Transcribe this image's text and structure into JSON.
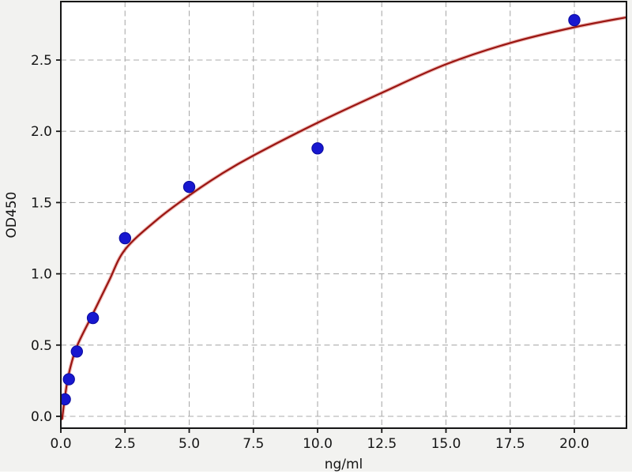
{
  "chart_data": {
    "type": "scatter",
    "title": "",
    "xlabel": "ng/ml",
    "ylabel": "OD450",
    "x_ticks": [
      0,
      2.5,
      5,
      7.5,
      10,
      12.5,
      15,
      17.5,
      20
    ],
    "x_tick_labels": [
      "0.0",
      "2.5",
      "5.0",
      "7.5",
      "10.0",
      "12.5",
      "15.0",
      "17.5",
      "20.0"
    ],
    "y_ticks": [
      0,
      0.5,
      1.0,
      1.5,
      2.0,
      2.5
    ],
    "y_tick_labels": [
      "0.0",
      "0.5",
      "1.0",
      "1.5",
      "2.0",
      "2.5"
    ],
    "xlim": [
      0,
      22.03
    ],
    "ylim": [
      -0.083,
      2.91
    ],
    "grid": "dashed",
    "legend_position": "none",
    "series": [
      {
        "name": "standard-points",
        "type": "scatter",
        "marker": "circle",
        "points": [
          [
            0.156,
            0.12
          ],
          [
            0.3125,
            0.26
          ],
          [
            0.625,
            0.455
          ],
          [
            1.25,
            0.69
          ],
          [
            2.5,
            1.25
          ],
          [
            5,
            1.61
          ],
          [
            10,
            1.88
          ],
          [
            20,
            2.78
          ]
        ]
      },
      {
        "name": "fitted-curve",
        "type": "line",
        "points": [
          [
            0.05,
            -0.02
          ],
          [
            0.156,
            0.13
          ],
          [
            0.3125,
            0.3
          ],
          [
            0.625,
            0.49
          ],
          [
            1.25,
            0.72
          ],
          [
            1.875,
            0.95
          ],
          [
            2.5,
            1.17
          ],
          [
            3.75,
            1.38
          ],
          [
            5,
            1.55
          ],
          [
            6.25,
            1.7
          ],
          [
            7.5,
            1.83
          ],
          [
            10,
            2.06
          ],
          [
            12.5,
            2.27
          ],
          [
            15,
            2.47
          ],
          [
            17.5,
            2.62
          ],
          [
            20,
            2.73
          ],
          [
            22.03,
            2.8
          ]
        ]
      }
    ],
    "colors": {
      "background": "#f2f2f0",
      "plot_background": "#ffffff",
      "grid": "#ababab",
      "spine": "#151515",
      "tick_label": "#151515",
      "point_fill": "#1717cf",
      "point_edge": "#0b0b9e",
      "curve": "#9a1511",
      "curve_halo": "#e0837d"
    }
  }
}
